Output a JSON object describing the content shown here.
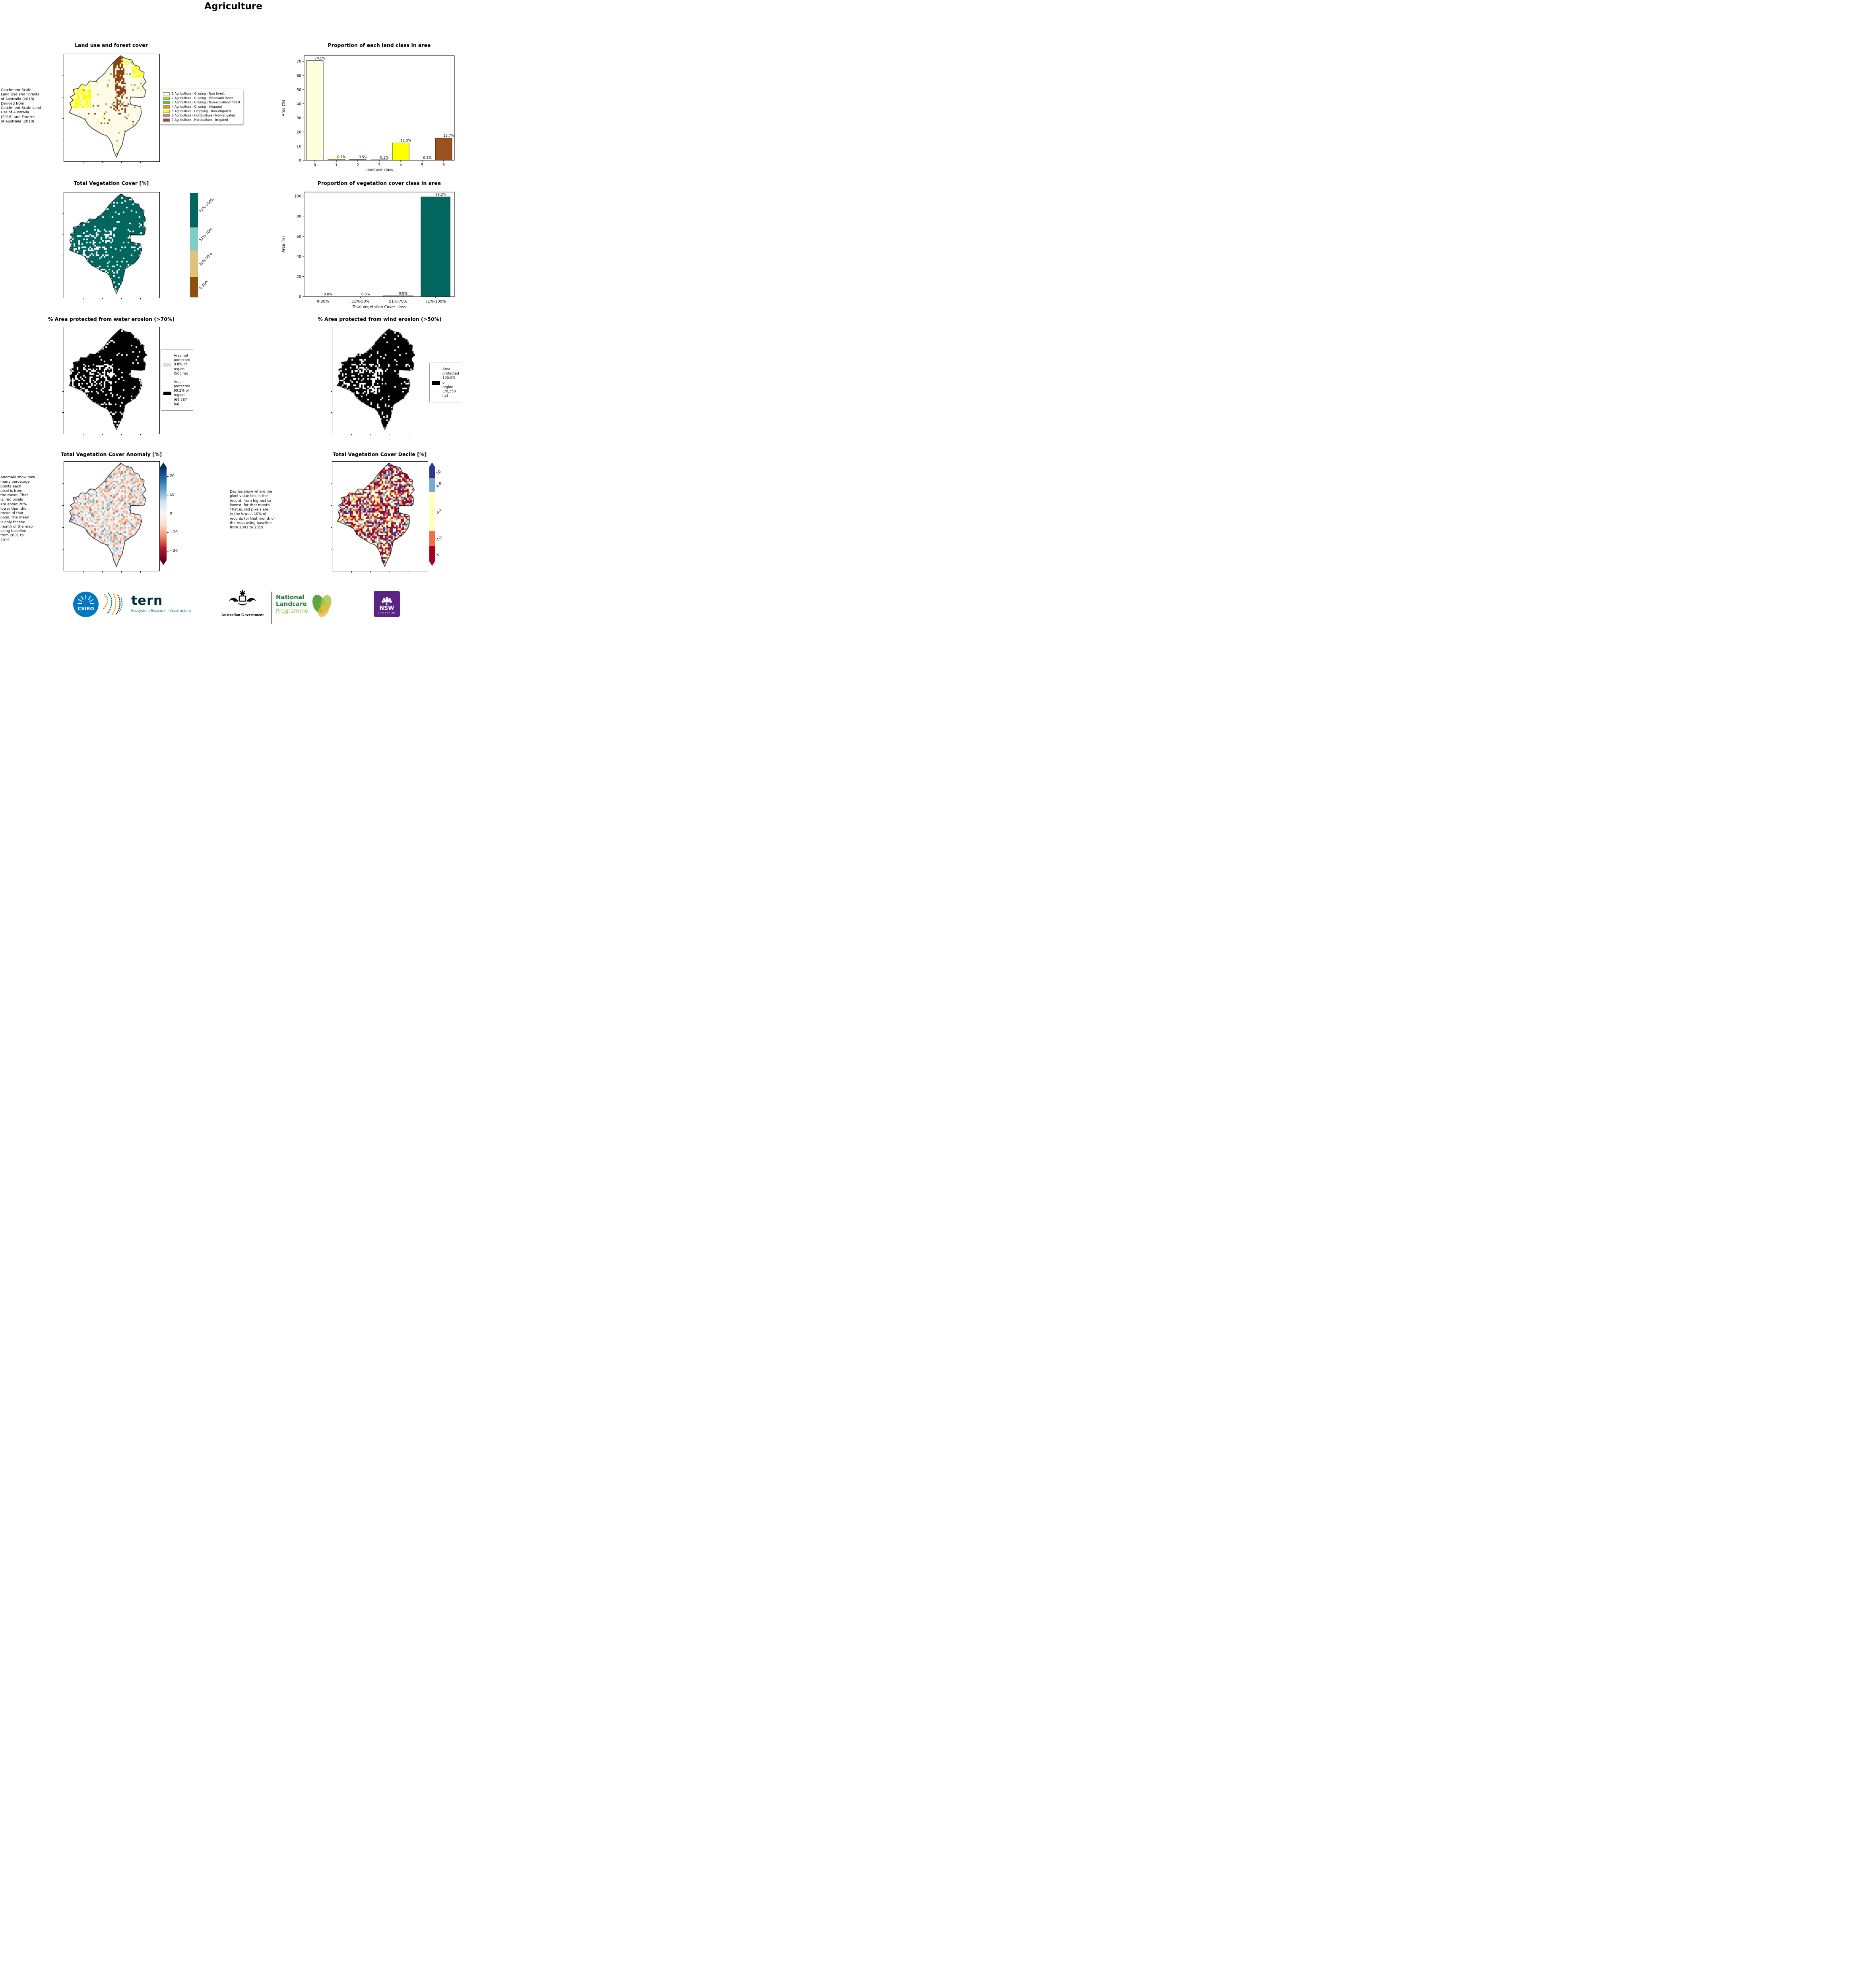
{
  "page": {
    "title": "Agriculture"
  },
  "row1": {
    "map_title": "Land use and forest cover",
    "note": " Catchment Scale\nLand Use and Forests\nof Australia (2018)\nDerived from\nCatchment Scale Land\nUse of Australia\n(2018) and Forests\nof Australia (2018)",
    "legend": [
      {
        "label": "1 Agriculture - Grazing - Non forest",
        "color": "#ffffd9"
      },
      {
        "label": "2 Agriculture - Grazing - Woodland forest",
        "color": "#b5cc36"
      },
      {
        "label": "3 Agriculture - Grazing - Non-woodland forest",
        "color": "#4fc43c"
      },
      {
        "label": "4 Agriculture - Grazing - Irrigated",
        "color": "#ff8c00"
      },
      {
        "label": "5 Agriculture - Cropping - Non-irrigated",
        "color": "#ffff00"
      },
      {
        "label": "6 Agriculture - Horticulture - Non-irrigated",
        "color": "#bc8f8f"
      },
      {
        "label": "7 Agriculture - Horticulture - Irrigated",
        "color": "#9c5220"
      }
    ]
  },
  "row2": {
    "map_title": "Total Vegetation Cover [%]",
    "colorbar": [
      {
        "label": "71%-100%",
        "color": "#01665e",
        "h": 33
      },
      {
        "label": "51%-70%",
        "color": "#80cdc1",
        "h": 22
      },
      {
        "label": "31%-50%",
        "color": "#dfc27d",
        "h": 25
      },
      {
        "label": "0-30%",
        "color": "#8c510a",
        "h": 20
      }
    ]
  },
  "row3": {
    "left_title": "% Area protected from water erosion (>70%)",
    "left_legend": [
      {
        "label": "Area not\nprotected\n0.8% of\nregion\n(563 ha)",
        "color": "#dcdcdc"
      },
      {
        "label": "Area\nprotected\n99.2% of\nregion\n(69,787\nha)",
        "color": "#000000"
      }
    ],
    "right_title": "% Area protected from wind erosion (>50%)",
    "right_legend": [
      {
        "label": "Area\nprotected\n100.0% of\nregion\n(70,350\nha)",
        "color": "#000000"
      }
    ]
  },
  "row4": {
    "left_title": "Total Vegetation Cover Anomaly [%]",
    "left_note": "Anomaly show how\nmany percetage\npoints each\npixel is from\nthe mean. That\nis, red pixels\nare about 20%\nlower than the\nmean of that\npixel. The mean\nis only for the\nmonth of the map\nusing baseline\nfrom 2001 to\n2019.",
    "anomaly_ticks": [
      "20",
      "10",
      "0",
      "−10",
      "−20"
    ],
    "right_title": "Total Vegetation Cover Decile [%]",
    "right_note": "Deciles show where the\npixel value lies in the\nrecord, from highest to\nlowest, for that month.\nThat is, red pixels are\nin the lowest 10% of\nrecords for that month of\nthe map using baseline\nfrom 2001 to 2019.",
    "decile_colorbar": [
      {
        "label": "10",
        "color": "#313695",
        "h": 12
      },
      {
        "label": "8-9",
        "color": "#74add1",
        "h": 15
      },
      {
        "label": "4-7",
        "color": "#ffffbf",
        "h": 41
      },
      {
        "label": "2-3",
        "color": "#f46d43",
        "h": 16
      },
      {
        "label": "1",
        "color": "#a50026",
        "h": 16
      }
    ]
  },
  "chart_data": [
    {
      "type": "bar",
      "title": "Proportion of each land class in area",
      "xlabel": "Land use class",
      "ylabel": "Area (%)",
      "categories": [
        "0",
        "1",
        "2",
        "3",
        "4",
        "5",
        "6"
      ],
      "values": [
        70.5,
        0.7,
        0.5,
        0.3,
        12.3,
        0.1,
        15.7
      ],
      "labels": [
        "70.5%",
        "0.7%",
        "0.5%",
        "0.3%",
        "12.3%",
        "0.1%",
        "15.7%"
      ],
      "colors": [
        "#ffffdd",
        "#b5cc36",
        "#4fc43c",
        "#ff8c00",
        "#ffff00",
        "#bc8f8f",
        "#9c5220"
      ],
      "ylim": [
        0,
        74
      ],
      "yticks": [
        0,
        10,
        20,
        30,
        40,
        50,
        60,
        70
      ],
      "grid": false,
      "legend_position": "none"
    },
    {
      "type": "bar",
      "title": "Proportion of vegetation cover class in area",
      "xlabel": "Total Vegetation Cover class",
      "ylabel": "Area (%)",
      "categories": [
        "0-30%",
        "31%-50%",
        "51%-70%",
        "71%-100%"
      ],
      "values": [
        0.0,
        0.0,
        0.8,
        99.2
      ],
      "labels": [
        "0.0%",
        "0.0%",
        "0.8%",
        "99.2%"
      ],
      "colors": [
        "#8c510a",
        "#dfc27d",
        "#80cdc1",
        "#01665e"
      ],
      "ylim": [
        0,
        104
      ],
      "yticks": [
        0,
        20,
        40,
        60,
        80,
        100
      ],
      "grid": false,
      "legend_position": "none"
    }
  ],
  "map_palettes": {
    "land_use_base": "#fffbe6",
    "cropping_yellow": "#ffff00",
    "horticulture_brown": "#8b4513",
    "grazing_woodland": "#b5cc36",
    "grazing_nonwoodland": "#4fc43c",
    "grazing_irrigated": "#ff8c00",
    "horticulture_rosybrown": "#bc8f8f",
    "veg_teal": "#01665e",
    "protected_black": "#000000",
    "hole_white": "#ffffff"
  },
  "footer": {
    "csiro": "CSIRO",
    "tern": "tern",
    "tern_sub": "Ecosystem Research Infrastructure",
    "aus_gov": "Australian Government",
    "landcare_1": "National",
    "landcare_2": "Landcare",
    "landcare_3": "Programme",
    "nsw": "NSW",
    "nsw_sub": "GOVERNMENT"
  }
}
